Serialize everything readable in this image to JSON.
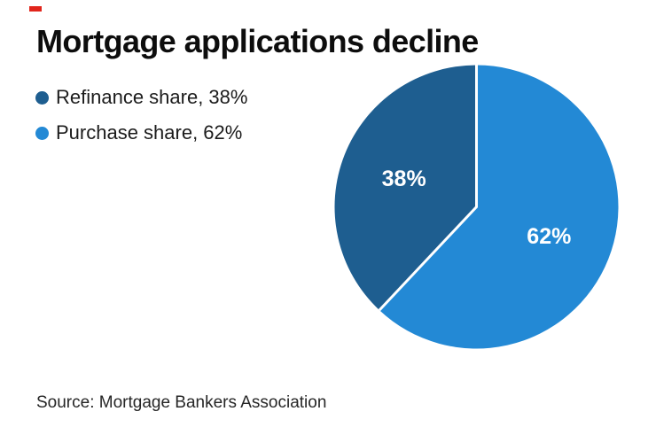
{
  "accent_color": "#e1251b",
  "title": "Mortgage applications decline",
  "legend": {
    "items": [
      {
        "label": "Refinance share, 38%",
        "color": "#1e5e90"
      },
      {
        "label": "Purchase share, 62%",
        "color": "#2389d5"
      }
    ]
  },
  "source": "Source: Mortgage Bankers Association",
  "chart_data": {
    "type": "pie",
    "title": "Mortgage applications decline",
    "slices": [
      {
        "name": "Purchase share",
        "value": 62,
        "label": "62%",
        "color": "#2389d5"
      },
      {
        "name": "Refinance share",
        "value": 38,
        "label": "38%",
        "color": "#1e5e90"
      }
    ],
    "start_angle_deg": 0,
    "direction": "clockwise",
    "divider_color": "#ffffff",
    "label_color": "#ffffff",
    "legend_position": "top-left",
    "source": "Source: Mortgage Bankers Association"
  }
}
